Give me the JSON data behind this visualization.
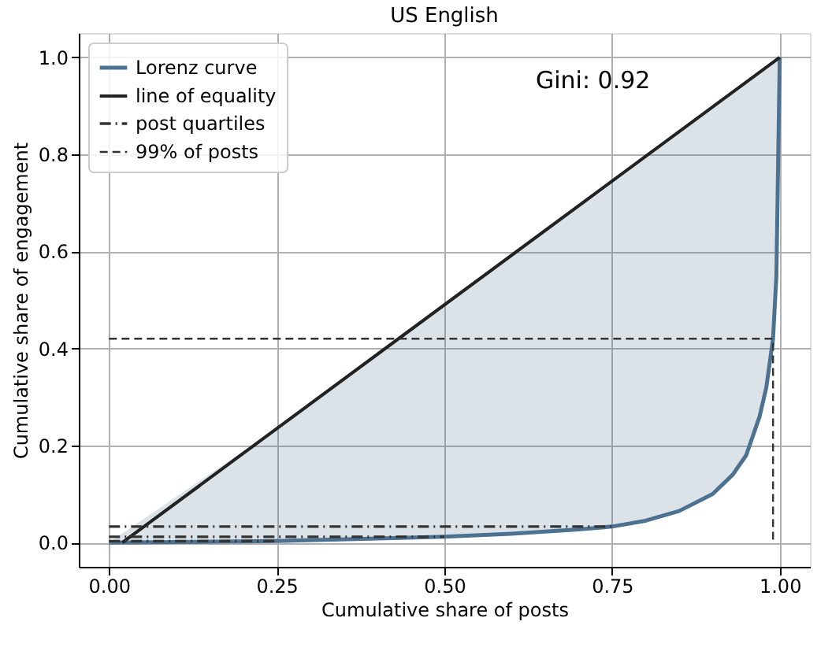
{
  "chart_data": {
    "type": "line",
    "title": "US English",
    "xlabel": "Cumulative share of posts",
    "ylabel": "Cumulative share of engagement",
    "annotations": [
      "Gini: 0.92"
    ],
    "xlim": [
      -0.045,
      1.045
    ],
    "ylim": [
      -0.05,
      1.05
    ],
    "xticks": [
      {
        "value": 0,
        "label": "0.00"
      },
      {
        "value": 0.25,
        "label": "0.25"
      },
      {
        "value": 0.5,
        "label": "0.50"
      },
      {
        "value": 0.75,
        "label": "0.75"
      },
      {
        "value": 1,
        "label": "1.00"
      }
    ],
    "yticks": [
      {
        "value": 0,
        "label": "0.0"
      },
      {
        "value": 0.2,
        "label": "0.2"
      },
      {
        "value": 0.4,
        "label": "0.4"
      },
      {
        "value": 0.6,
        "label": "0.6"
      },
      {
        "value": 0.8,
        "label": "0.8"
      },
      {
        "value": 1,
        "label": "1.0"
      }
    ],
    "grid": true,
    "legend": "top left",
    "marker": "none",
    "series": [
      {
        "name": "Lorenz curve",
        "color": "#4d7291",
        "line_style": "solid",
        "x": [
          0,
          0.25,
          0.5,
          0.6,
          0.7,
          0.75,
          0.8,
          0.85,
          0.9,
          0.93,
          0.95,
          0.97,
          0.98,
          0.99,
          0.995,
          1
        ],
        "values": [
          0,
          0.003,
          0.012,
          0.018,
          0.027,
          0.033,
          0.045,
          0.065,
          0.1,
          0.14,
          0.18,
          0.26,
          0.32,
          0.42,
          0.55,
          1
        ],
        "lower": [
          0,
          0.003,
          0.012,
          0.018,
          0.027,
          0.033,
          0.045,
          0.065,
          0.1,
          0.14,
          0.18,
          0.26,
          0.32,
          0.42,
          0.55,
          1
        ],
        "upper": [
          0,
          0.235,
          0.49,
          0.59,
          0.69,
          0.745,
          0.8,
          0.85,
          0.9,
          0.93,
          0.95,
          0.97,
          0.98,
          0.99,
          0.995,
          1
        ]
      },
      {
        "name": "line of equality",
        "color": "#222222",
        "line_style": "solid",
        "x": [
          0.02,
          1
        ],
        "values": [
          0,
          1
        ]
      },
      {
        "name": "post quartiles",
        "color": "#333333",
        "line_style": "dashdot",
        "x": [
          0,
          0.25,
          null,
          0,
          0.5,
          null,
          0,
          0.75
        ],
        "values": [
          0.003,
          0.003,
          null,
          0.012,
          0.012,
          null,
          0.033,
          0.033
        ]
      },
      {
        "name": "99% of posts",
        "color": "#333333",
        "line_style": "dashed",
        "x": [
          0,
          0.99,
          0.99
        ],
        "values": [
          0.42,
          0.42,
          0
        ]
      }
    ]
  }
}
